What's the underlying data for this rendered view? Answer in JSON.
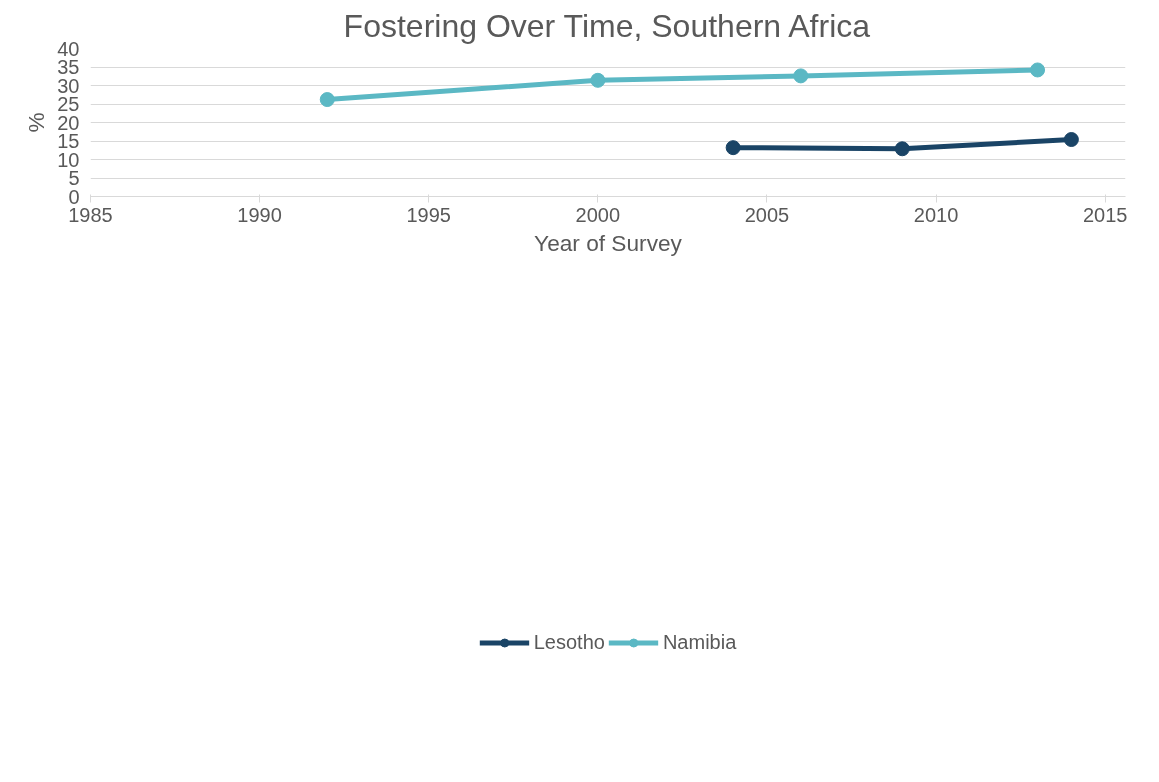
{
  "chart_data": {
    "type": "line",
    "title": "Fostering Over Time, Southern Africa",
    "xlabel": "Year of Survey",
    "ylabel": "%",
    "xlim": [
      1985,
      2015.6
    ],
    "xticks": [
      1985,
      1990,
      1995,
      2000,
      2005,
      2010,
      2015
    ],
    "ylim": [
      0,
      40
    ],
    "yticks": [
      0,
      5,
      10,
      15,
      20,
      25,
      30,
      35,
      40
    ],
    "grid": "y",
    "legend": "bottom",
    "marker": "circle",
    "line_style": "solid",
    "series": [
      {
        "name": "Lesotho",
        "color": "#1a4466",
        "x": [
          2004,
          2009,
          2014
        ],
        "values": [
          13.2,
          12.9,
          15.4
        ]
      },
      {
        "name": "Namibia",
        "color": "#5bb8c4",
        "x": [
          1992,
          2000,
          2006,
          2013
        ],
        "values": [
          26.2,
          31.4,
          32.6,
          34.2
        ]
      }
    ]
  }
}
